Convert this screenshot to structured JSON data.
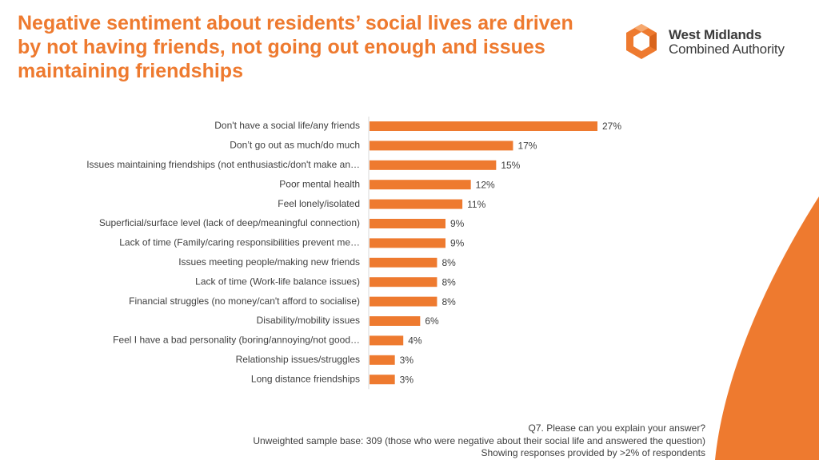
{
  "header": {
    "title": "Negative sentiment about residents’ social lives are driven by not having friends, not going out enough and issues maintaining friendships"
  },
  "logo": {
    "line1": "West Midlands",
    "line2": "Combined Authority",
    "icon": "wmca-hexagon-logo-icon",
    "color": "#ee7a2f"
  },
  "colors": {
    "accent": "#ee7a2f",
    "bar": "#ee7a2f",
    "text": "#404040"
  },
  "chart_data": {
    "type": "bar",
    "orientation": "horizontal",
    "categories": [
      "Don't have a social life/any friends",
      "Don’t go out as much/do much",
      "Issues maintaining friendships (not enthusiastic/don't make an…",
      "Poor mental health",
      "Feel lonely/isolated",
      "Superficial/surface level (lack of deep/meaningful connection)",
      "Lack of time (Family/caring responsibilities prevent me…",
      "Issues meeting people/making new friends",
      "Lack of time (Work-life balance issues)",
      "Financial struggles (no money/can't afford to socialise)",
      "Disability/mobility issues",
      "Feel I have a bad personality (boring/annoying/not good…",
      "Relationship issues/struggles",
      "Long distance friendships"
    ],
    "values": [
      27,
      17,
      15,
      12,
      11,
      9,
      9,
      8,
      8,
      8,
      6,
      4,
      3,
      3
    ],
    "value_labels": [
      "27%",
      "17%",
      "15%",
      "12%",
      "11%",
      "9%",
      "9%",
      "8%",
      "8%",
      "8%",
      "6%",
      "4%",
      "3%",
      "3%"
    ],
    "unit": "%",
    "xlim": [
      0,
      30
    ],
    "grid": false,
    "legend": "none"
  },
  "footer": {
    "line1": "Q7. Please can you explain your answer?",
    "line2": "Unweighted sample base: 309 (those who were negative about their social life and answered the question)",
    "line3": "Showing responses provided by >2% of respondents"
  }
}
